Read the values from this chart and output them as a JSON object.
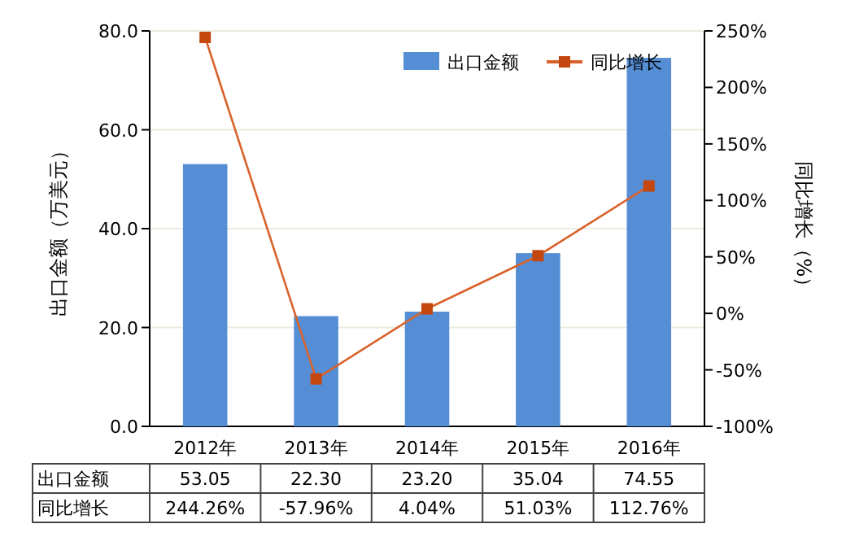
{
  "chart_data": {
    "type": "bar",
    "categories": [
      "2012年",
      "2013年",
      "2014年",
      "2015年",
      "2016年"
    ],
    "ylabel": "出口金额（万美元）",
    "y2label": "同比增长（%）",
    "ylim": [
      0,
      80
    ],
    "yticks": [
      {
        "value": 0,
        "label": "0.0"
      },
      {
        "value": 20,
        "label": "20.0"
      },
      {
        "value": 40,
        "label": "40.0"
      },
      {
        "value": 60,
        "label": "60.0"
      },
      {
        "value": 80,
        "label": "80.0"
      }
    ],
    "y2lim": [
      -100,
      250
    ],
    "y2ticks": [
      {
        "value": -100,
        "label": "-100%"
      },
      {
        "value": -50,
        "label": "-50%"
      },
      {
        "value": 0,
        "label": "0%"
      },
      {
        "value": 50,
        "label": "50%"
      },
      {
        "value": 100,
        "label": "100%"
      },
      {
        "value": 150,
        "label": "150%"
      },
      {
        "value": 200,
        "label": "200%"
      },
      {
        "value": 250,
        "label": "250%"
      }
    ],
    "grid": "y",
    "legend": "top right",
    "series": [
      {
        "name": "出口金额",
        "color": "#558ed5",
        "values": [
          53.05,
          22.3,
          23.2,
          35.04,
          74.55
        ],
        "value_labels": [
          "53.05",
          "22.30",
          "23.20",
          "35.04",
          "74.55"
        ]
      },
      {
        "name": "同比增长",
        "type": "line",
        "axis": "y2",
        "color": "#d9622b",
        "marker": "square",
        "values": [
          244.26,
          -57.96,
          4.04,
          51.03,
          112.76
        ],
        "value_labels": [
          "244.26%",
          "-57.96%",
          "4.04%",
          "51.03%",
          "112.76%"
        ]
      }
    ]
  }
}
